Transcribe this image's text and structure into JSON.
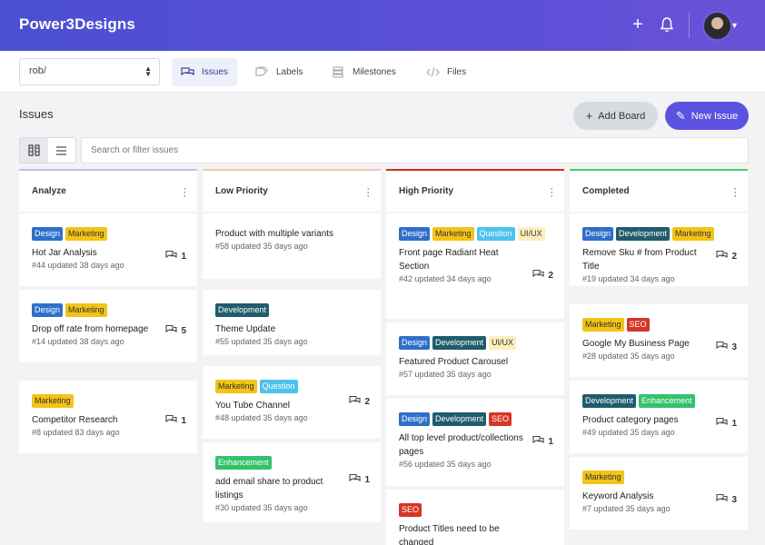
{
  "header": {
    "brand": "Power3Designs"
  },
  "subnav": {
    "repo": "rob/",
    "tabs": [
      {
        "label": "Issues"
      },
      {
        "label": "Labels"
      },
      {
        "label": "Milestones"
      },
      {
        "label": "Files"
      }
    ]
  },
  "issues": {
    "title": "Issues",
    "add_board": "Add Board",
    "new_issue": "New Issue",
    "search_placeholder": "Search or filter issues"
  },
  "colors": {
    "accent": "#5b52e0",
    "analyze": "#c8b9f3",
    "low": "#f3c9b0",
    "high": "#d32b1e",
    "completed": "#3fcf6a"
  },
  "columns": [
    {
      "title": "Analyze",
      "cards": [
        {
          "tags": [
            "Design",
            "Marketing"
          ],
          "title": "Hot Jar Analysis",
          "meta": "#44 updated 38 days ago",
          "comments": "1"
        },
        {
          "tags": [
            "Design",
            "Marketing"
          ],
          "title": "Drop off rate from homepage",
          "meta": "#14 updated 38 days ago",
          "comments": "5"
        },
        {
          "tags": [
            "Marketing"
          ],
          "title": "Competitor Research",
          "meta": "#8 updated 83 days ago",
          "comments": "1"
        }
      ]
    },
    {
      "title": "Low Priority",
      "cards": [
        {
          "tags": [],
          "title": "Product with multiple variants",
          "meta": "#58 updated 35 days ago",
          "comments": ""
        },
        {
          "tags": [
            "Development"
          ],
          "title": "Theme Update",
          "meta": "#55 updated 35 days ago",
          "comments": ""
        },
        {
          "tags": [
            "Marketing",
            "Question"
          ],
          "title": "You Tube Channel",
          "meta": "#48 updated 35 days ago",
          "comments": "2"
        },
        {
          "tags": [
            "Enhancement"
          ],
          "title": "add email share to product listings",
          "meta": "#30 updated 35 days ago",
          "comments": "1"
        }
      ]
    },
    {
      "title": "High Priority",
      "cards": [
        {
          "tags": [
            "Design",
            "Marketing",
            "Question",
            "UI/UX"
          ],
          "title": "Front page Radiant Heat Section",
          "meta": "#42 updated 34 days ago",
          "comments": "2"
        },
        {
          "tags": [
            "Design",
            "Development",
            "UI/UX"
          ],
          "title": "Featured Product Carousel",
          "meta": "#57 updated 35 days ago",
          "comments": ""
        },
        {
          "tags": [
            "Design",
            "Development",
            "SEO"
          ],
          "title": "All top level product/collections pages",
          "meta": "#56 updated 35 days ago",
          "comments": "1"
        },
        {
          "tags": [
            "SEO"
          ],
          "title": "Product Titles need to be changed",
          "meta": "",
          "comments": ""
        }
      ]
    },
    {
      "title": "Completed",
      "cards": [
        {
          "tags": [
            "Design",
            "Development",
            "Marketing"
          ],
          "title": "Remove Sku # from Product Title",
          "meta": "#19 updated 34 days ago",
          "comments": "2"
        },
        {
          "tags": [
            "Marketing",
            "SEO"
          ],
          "title": "Google My Business Page",
          "meta": "#28 updated 35 days ago",
          "comments": "3"
        },
        {
          "tags": [
            "Development",
            "Enhancement"
          ],
          "title": "Product category pages",
          "meta": "#49 updated 35 days ago",
          "comments": "1"
        },
        {
          "tags": [
            "Marketing"
          ],
          "title": "Keyword Analysis",
          "meta": "#7 updated 35 days ago",
          "comments": "3"
        }
      ]
    }
  ]
}
